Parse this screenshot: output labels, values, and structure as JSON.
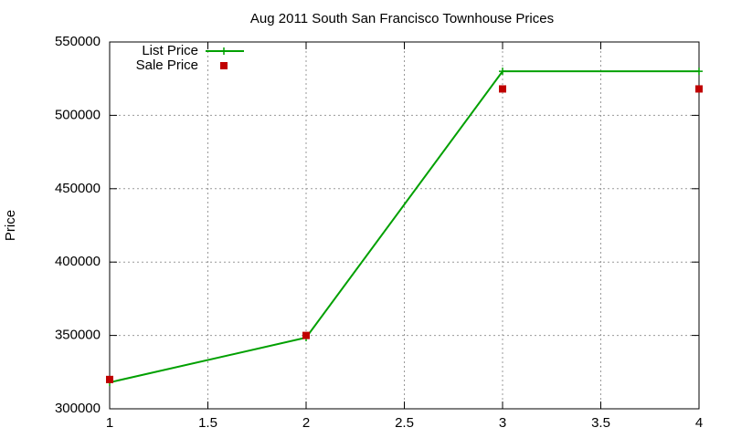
{
  "chart_data": {
    "type": "line",
    "title": "Aug 2011 South San Francisco Townhouse Prices",
    "y_label": "Price",
    "x": [
      1,
      2,
      3,
      4
    ],
    "series": [
      {
        "name": "List Price",
        "color": "#00a000",
        "values": [
          318000,
          348500,
          530000,
          530000
        ],
        "line": true,
        "marker": "plus"
      },
      {
        "name": "Sale Price",
        "color": "#c00000",
        "values": [
          320000,
          350000,
          518000,
          518000
        ],
        "line": false,
        "marker": "square"
      }
    ],
    "xlim": [
      1,
      4
    ],
    "xticks": [
      1,
      1.5,
      2,
      2.5,
      3,
      3.5,
      4
    ],
    "ylim": [
      300000,
      550000
    ],
    "yticks": [
      300000,
      350000,
      400000,
      450000,
      500000,
      550000
    ],
    "grid": true,
    "legend": "top-left"
  }
}
